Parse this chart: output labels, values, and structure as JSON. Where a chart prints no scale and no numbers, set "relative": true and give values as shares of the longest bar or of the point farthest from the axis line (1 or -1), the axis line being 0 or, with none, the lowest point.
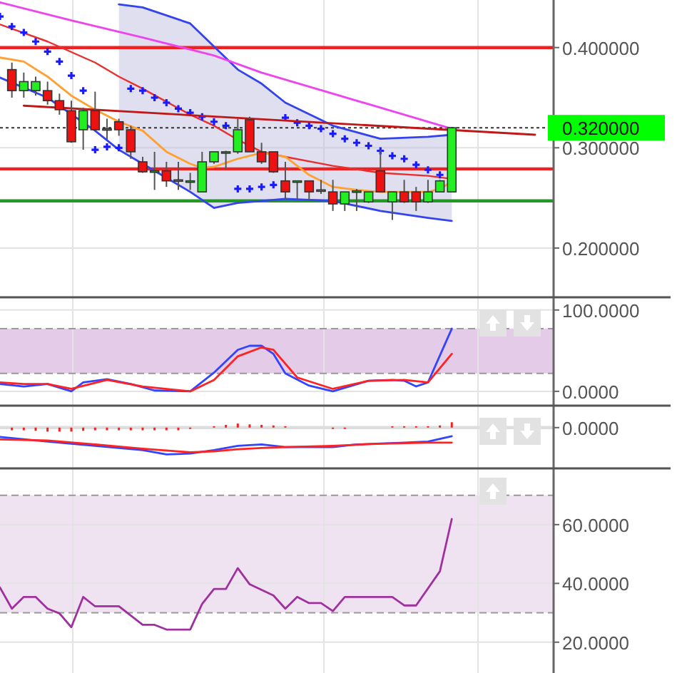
{
  "chart_data": [
    {
      "type": "candlestick",
      "categories": [
        null,
        null,
        null,
        null,
        null,
        null,
        null,
        null,
        null,
        null,
        null,
        null,
        null,
        null,
        null,
        null,
        null,
        null,
        null,
        null,
        null,
        null,
        null,
        null,
        null,
        null,
        null,
        null,
        null,
        null,
        null,
        null,
        null,
        null,
        null,
        null,
        null,
        null,
        null,
        null,
        null,
        null,
        null,
        null,
        null,
        null,
        null
      ],
      "ylim": [
        0.153,
        0.446
      ],
      "yticks": [
        {
          "value": 0.2,
          "label": "0.200000"
        },
        {
          "value": 0.3,
          "label": "0.300000"
        },
        {
          "value": 0.4,
          "label": "0.400000"
        }
      ],
      "grid": true,
      "tick_labels": "y",
      "ohlc": [
        null,
        [
          0.378,
          0.385,
          0.35,
          0.357
        ],
        [
          0.357,
          0.375,
          0.35,
          0.366
        ],
        [
          0.357,
          0.371,
          0.352,
          0.366
        ],
        [
          0.357,
          0.366,
          0.343,
          0.347
        ],
        [
          0.347,
          0.354,
          0.333,
          0.338
        ],
        [
          0.337,
          0.347,
          0.305,
          0.306
        ],
        [
          0.318,
          0.34,
          0.298,
          0.337
        ],
        [
          0.337,
          0.356,
          0.317,
          0.318
        ],
        [
          0.318,
          0.329,
          0.308,
          0.319
        ],
        [
          0.326,
          0.329,
          0.312,
          0.318
        ],
        [
          0.318,
          0.322,
          0.289,
          0.296
        ],
        [
          0.286,
          0.291,
          0.275,
          0.276
        ],
        [
          0.276,
          0.296,
          0.258,
          0.277
        ],
        [
          0.277,
          0.286,
          0.261,
          0.267
        ],
        [
          0.267,
          0.286,
          0.258,
          0.268
        ],
        [
          0.266,
          0.275,
          0.258,
          0.267
        ],
        [
          0.256,
          0.296,
          0.256,
          0.286
        ],
        [
          0.286,
          0.296,
          0.284,
          0.296
        ],
        [
          0.295,
          0.297,
          0.279,
          0.296
        ],
        [
          0.296,
          0.329,
          0.294,
          0.318
        ],
        [
          0.328,
          0.331,
          0.296,
          0.296
        ],
        [
          0.296,
          0.305,
          0.284,
          0.286
        ],
        [
          0.296,
          0.296,
          0.275,
          0.276
        ],
        [
          0.267,
          0.286,
          0.249,
          0.256
        ],
        [
          0.266,
          0.267,
          0.249,
          0.267
        ],
        [
          0.267,
          0.267,
          0.249,
          0.256
        ],
        [
          0.257,
          0.268,
          0.254,
          0.258
        ],
        [
          0.256,
          0.268,
          0.237,
          0.244
        ],
        [
          0.244,
          0.256,
          0.237,
          0.256
        ],
        [
          0.256,
          0.259,
          0.237,
          0.257
        ],
        [
          0.246,
          0.256,
          0.245,
          0.256
        ],
        [
          0.277,
          0.298,
          0.256,
          0.256
        ],
        [
          0.246,
          0.256,
          0.228,
          0.256
        ],
        [
          0.256,
          0.268,
          0.245,
          0.246
        ],
        [
          0.256,
          0.261,
          0.237,
          0.246
        ],
        [
          0.246,
          0.268,
          0.245,
          0.256
        ],
        [
          0.256,
          0.268,
          0.256,
          0.267
        ],
        [
          0.256,
          0.32,
          0.256,
          0.32
        ],
        null,
        null,
        null,
        null,
        null,
        null,
        null,
        null
      ],
      "colors": [
        null,
        "#ee1111",
        "#22ee22",
        "#22ee22",
        "#ee1111",
        "#ee1111",
        "#ee1111",
        "#22ee22",
        "#ee1111",
        "#22ee22",
        "#ee1111",
        "#ee1111",
        "#ee1111",
        "#22ee22",
        "#ee1111",
        "#22ee22",
        "#22ee22",
        "#22ee22",
        "#22ee22",
        "#22ee22",
        "#22ee22",
        "#ee1111",
        "#ee1111",
        "#ee1111",
        "#ee1111",
        "#22ee22",
        "#ee1111",
        "#22ee22",
        "#ee1111",
        "#22ee22",
        "#22ee22",
        "#22ee22",
        "#ee1111",
        "#22ee22",
        "#ee1111",
        "#ee1111",
        "#22ee22",
        "#22ee22",
        "#22ee22",
        null,
        null,
        null,
        null,
        null,
        null,
        null,
        null
      ],
      "series": [
        {
          "type": "line",
          "color": "#e83030",
          "values": [
            0.423,
            null,
            null,
            null,
            0.406,
            null,
            null,
            null,
            0.385,
            null,
            0.371,
            null,
            0.359,
            null,
            null,
            null,
            0.333,
            null,
            0.322,
            null,
            0.308,
            null,
            0.296,
            null,
            0.291,
            null,
            null,
            null,
            0.282,
            null,
            null,
            null,
            0.275,
            null,
            null,
            null,
            0.272,
            null,
            0.269,
            null,
            null,
            null,
            null,
            null,
            null,
            null,
            null
          ],
          "lower": [
            null,
            null,
            null,
            null,
            null,
            null,
            null,
            null,
            null,
            null,
            0.298,
            null,
            0.284,
            null,
            null,
            null,
            0.256,
            null,
            0.24,
            null,
            0.245,
            null,
            0.247,
            null,
            0.249,
            null,
            null,
            null,
            0.247,
            null,
            null,
            null,
            0.237,
            null,
            null,
            null,
            0.23,
            null,
            0.227,
            null,
            null,
            null,
            null,
            null,
            null,
            null,
            null
          ],
          "upper": [
            null,
            null,
            null,
            null,
            null,
            null,
            null,
            null,
            null,
            null,
            0.443,
            null,
            0.44,
            null,
            null,
            null,
            0.424,
            null,
            0.401,
            null,
            0.378,
            null,
            0.364,
            null,
            0.345,
            null,
            null,
            null,
            0.322,
            null,
            null,
            null,
            0.309,
            null,
            null,
            null,
            0.311,
            null,
            0.313,
            null,
            null,
            null,
            null,
            null,
            null,
            null,
            null
          ]
        },
        {
          "type": "line",
          "color": "#3344ee",
          "values": [
            0.37,
            null,
            null,
            null,
            0.35,
            null,
            null,
            null,
            0.317,
            null,
            0.298,
            null,
            0.284,
            null,
            null,
            null,
            0.256,
            null,
            0.24,
            null,
            0.245,
            null,
            0.247,
            null,
            0.249,
            null,
            null,
            null,
            0.247,
            null,
            null,
            null,
            0.237,
            null,
            null,
            null,
            0.23,
            null,
            0.227,
            null,
            null,
            null,
            null,
            null,
            null,
            null,
            null
          ]
        },
        {
          "type": "line",
          "color": "#3344ee",
          "values": [
            null,
            null,
            null,
            null,
            null,
            null,
            null,
            null,
            null,
            null,
            0.443,
            null,
            0.44,
            null,
            null,
            null,
            0.424,
            null,
            0.401,
            null,
            0.378,
            null,
            0.364,
            null,
            0.345,
            null,
            null,
            null,
            0.322,
            null,
            null,
            null,
            0.309,
            null,
            null,
            null,
            0.311,
            null,
            0.313,
            null,
            null,
            null,
            null,
            null,
            null,
            null,
            null
          ]
        },
        {
          "type": "line",
          "color": "#ffa030",
          "values": [
            0.39,
            null,
            0.386,
            null,
            0.371,
            null,
            0.352,
            null,
            0.338,
            null,
            0.326,
            null,
            0.317,
            null,
            0.296,
            null,
            0.284,
            0.28,
            0.281,
            null,
            0.289,
            null,
            0.295,
            null,
            0.291,
            null,
            0.273,
            null,
            0.261,
            null,
            0.258,
            null,
            0.256,
            null,
            0.256,
            null,
            0.256,
            0.259,
            0.266,
            null,
            null,
            null,
            null,
            null,
            null,
            null,
            null
          ]
        },
        {
          "type": "line",
          "color": "#ee44ee",
          "values": [
            0.445,
            null,
            null,
            null,
            null,
            null,
            0.427,
            null,
            null,
            null,
            null,
            null,
            0.41,
            null,
            null,
            null,
            null,
            null,
            0.392,
            null,
            null,
            null,
            0.375,
            null,
            null,
            null,
            null,
            null,
            0.354,
            null,
            null,
            null,
            null,
            null,
            0.333,
            null,
            null,
            null,
            0.319,
            null,
            null,
            null,
            null,
            null,
            null,
            null,
            null
          ]
        },
        {
          "type": "scatter",
          "marker": "cross",
          "color": "#1a1aff",
          "values": [
            0.431,
            0.421,
            0.415,
            0.406,
            0.396,
            0.386,
            0.372,
            0.357,
            0.298,
            0.301,
            0.3,
            0.359,
            0.357,
            0.35,
            0.345,
            0.339,
            0.335,
            0.331,
            0.326,
            0.322,
            0.259,
            0.259,
            0.261,
            0.263,
            0.33,
            0.325,
            0.322,
            0.319,
            0.314,
            0.309,
            0.305,
            0.302,
            0.297,
            0.292,
            0.289,
            0.283,
            0.278,
            0.273,
            null,
            null,
            null,
            null,
            null,
            null,
            null,
            null,
            null
          ]
        },
        {
          "type": "line",
          "color": "#c01818",
          "values": [
            null,
            null,
            0.342,
            null,
            null,
            null,
            null,
            null,
            null,
            null,
            null,
            null,
            null,
            null,
            null,
            null,
            null,
            null,
            null,
            null,
            null,
            null,
            null,
            null,
            null,
            null,
            null,
            null,
            null,
            null,
            null,
            null,
            null,
            null,
            null,
            null,
            null,
            null,
            null,
            null,
            null,
            null,
            null,
            null,
            null,
            0.313,
            null
          ]
        }
      ],
      "ref_lines": [
        {
          "axis": "y",
          "value": 0.4,
          "color": "#ee2222"
        },
        {
          "axis": "y",
          "value": 0.279,
          "color": "#ee2222"
        },
        {
          "axis": "y",
          "value": 0.247,
          "color": "#229922"
        },
        {
          "axis": "y",
          "value": 0.32,
          "color": "#333333",
          "line_style": "dotted",
          "label": "0.320000"
        }
      ]
    },
    {
      "type": "line",
      "categories": [
        null,
        null,
        null,
        null,
        null,
        null,
        null,
        null,
        null,
        null,
        null,
        null,
        null,
        null,
        null,
        null,
        null,
        null,
        null,
        null,
        null,
        null,
        null,
        null,
        null,
        null,
        null,
        null,
        null,
        null,
        null,
        null,
        null,
        null,
        null,
        null,
        null,
        null,
        null,
        null,
        null,
        null,
        null,
        null,
        null,
        null,
        null
      ],
      "ylim": [
        -15,
        113
      ],
      "yticks": [
        {
          "value": 0,
          "label": "0.0000"
        },
        {
          "value": 100,
          "label": "100.0000"
        }
      ],
      "grid": true,
      "tick_labels": "y",
      "bands": [
        {
          "axis": "y",
          "from": 22,
          "to": 77,
          "color": "#e4cbe7"
        }
      ],
      "ref_lines": [
        {
          "axis": "y",
          "value": 77,
          "color": "#999999",
          "line_style": "dashed"
        },
        {
          "axis": "y",
          "value": 22,
          "color": "#999999",
          "line_style": "dashed"
        }
      ],
      "series": [
        {
          "color": "#3344ff",
          "values": [
            9,
            null,
            6,
            null,
            9,
            null,
            0,
            11,
            null,
            15,
            null,
            9,
            null,
            1,
            null,
            null,
            0,
            null,
            23,
            null,
            51,
            56,
            56,
            46,
            22,
            null,
            7,
            null,
            0,
            null,
            null,
            13,
            null,
            14,
            13,
            6,
            11,
            null,
            77,
            null,
            null,
            null,
            null,
            null,
            null,
            null,
            null
          ]
        },
        {
          "color": "#ff2222",
          "values": [
            11,
            null,
            9,
            null,
            9,
            null,
            3,
            null,
            null,
            14,
            null,
            null,
            6,
            null,
            null,
            null,
            0,
            null,
            14,
            null,
            43,
            null,
            54,
            51,
            null,
            17,
            null,
            null,
            3,
            null,
            null,
            13,
            null,
            null,
            14,
            null,
            11,
            null,
            46,
            null,
            null,
            null,
            null,
            null,
            null,
            null,
            null
          ]
        }
      ]
    },
    {
      "type": "line",
      "relative": true,
      "categories": [
        null,
        null,
        null,
        null,
        null,
        null,
        null,
        null,
        null,
        null,
        null,
        null,
        null,
        null,
        null,
        null,
        null,
        null,
        null,
        null,
        null,
        null,
        null,
        null,
        null,
        null,
        null,
        null,
        null,
        null,
        null,
        null,
        null,
        null,
        null,
        null,
        null,
        null,
        null,
        null,
        null,
        null,
        null,
        null,
        null,
        null,
        null
      ],
      "grid": true,
      "tick_labels": false,
      "ref_lines": [
        {
          "axis": "y",
          "value": 0,
          "color": "#dddddd",
          "label": "0.0000"
        }
      ],
      "series": [
        {
          "type": "bar",
          "color": "#ee2222",
          "values": [
            null,
            -0.1,
            -0.1,
            -0.12,
            -0.15,
            -0.15,
            -0.15,
            -0.12,
            -0.1,
            -0.1,
            -0.1,
            -0.1,
            -0.1,
            -0.1,
            -0.1,
            -0.1,
            -0.05,
            null,
            0.05,
            0.1,
            0.15,
            0.12,
            0.1,
            0.08,
            0.05,
            null,
            null,
            null,
            -0.05,
            -0.05,
            null,
            null,
            null,
            0.05,
            0.05,
            0.05,
            0.05,
            0.08,
            0.2,
            null,
            null,
            null,
            null,
            null,
            null,
            null,
            null
          ]
        },
        {
          "color": "#3344ff",
          "values": [
            -0.35,
            null,
            null,
            null,
            -0.52,
            null,
            null,
            null,
            -0.68,
            null,
            null,
            null,
            -0.84,
            null,
            -1,
            null,
            -0.97,
            null,
            -0.84,
            null,
            -0.68,
            null,
            -0.63,
            null,
            -0.73,
            null,
            null,
            null,
            -0.73,
            null,
            -0.63,
            null,
            null,
            null,
            -0.56,
            null,
            -0.52,
            null,
            -0.32,
            null,
            null,
            null,
            null,
            null,
            null,
            null,
            null
          ]
        },
        {
          "color": "#ff2222",
          "values": [
            -0.44,
            null,
            null,
            null,
            -0.48,
            null,
            null,
            null,
            -0.63,
            null,
            null,
            null,
            -0.79,
            null,
            null,
            null,
            -0.92,
            null,
            -0.89,
            null,
            -0.81,
            null,
            -0.76,
            null,
            -0.73,
            null,
            null,
            null,
            -0.68,
            null,
            null,
            null,
            -0.6,
            null,
            null,
            null,
            -0.56,
            null,
            -0.56,
            null,
            null,
            null,
            null,
            null,
            null,
            null,
            null
          ]
        }
      ]
    },
    {
      "type": "line",
      "categories": [
        null,
        null,
        null,
        null,
        null,
        null,
        null,
        null,
        null,
        null,
        null,
        null,
        null,
        null,
        null,
        null,
        null,
        null,
        null,
        null,
        null,
        null,
        null,
        null,
        null,
        null,
        null,
        null,
        null,
        null,
        null,
        null,
        null,
        null,
        null,
        null,
        null,
        null,
        null,
        null,
        null,
        null,
        null,
        null,
        null,
        null,
        null
      ],
      "ylim": [
        10,
        78.4
      ],
      "yticks": [
        {
          "value": 20,
          "label": "20.0000"
        },
        {
          "value": 40,
          "label": "40.0000"
        },
        {
          "value": 60,
          "label": "60.0000"
        }
      ],
      "grid": true,
      "tick_labels": "y",
      "bands": [
        {
          "axis": "y",
          "from": 30,
          "to": 70,
          "color": "#f0e3f1"
        }
      ],
      "ref_lines": [
        {
          "axis": "y",
          "value": 70,
          "color": "#999999",
          "line_style": "dashed"
        },
        {
          "axis": "y",
          "value": 30,
          "color": "#999999",
          "line_style": "dashed"
        }
      ],
      "series": [
        {
          "color": "#a030a0",
          "values": [
            38.6,
            31.4,
            35.4,
            35.4,
            31.4,
            29.8,
            25.1,
            35.4,
            32.2,
            null,
            32.2,
            null,
            25.9,
            25.9,
            24.3,
            null,
            24.3,
            33,
            38.1,
            38.1,
            45.2,
            39.7,
            null,
            35.9,
            31.4,
            35.4,
            33.3,
            33.3,
            30.6,
            35.4,
            null,
            null,
            null,
            35.4,
            32.5,
            32.5,
            null,
            44.1,
            61.9,
            null,
            null,
            null,
            null,
            null,
            null,
            null,
            null
          ]
        }
      ]
    }
  ]
}
